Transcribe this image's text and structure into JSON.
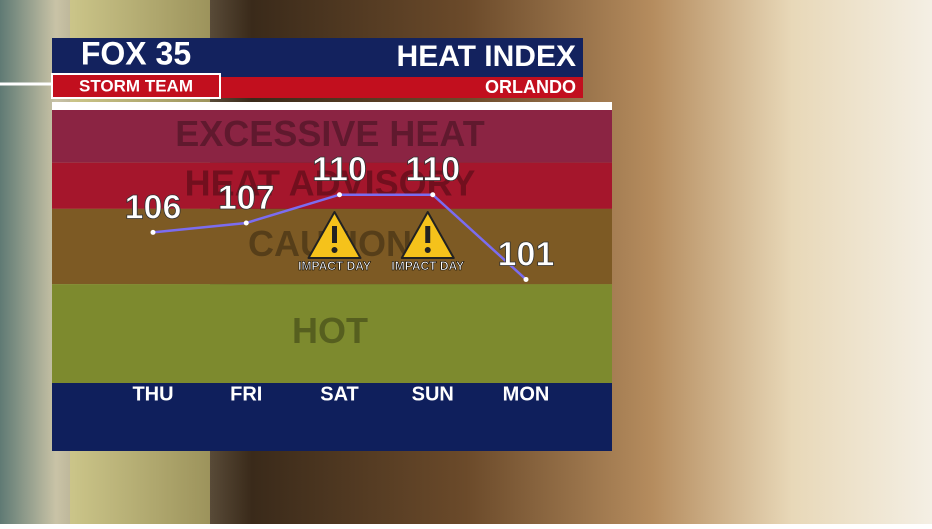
{
  "header": {
    "logo": "FOX 35",
    "team": "STORM TEAM",
    "title": "HEAT INDEX",
    "location": "ORLANDO"
  },
  "chart_data": {
    "type": "line",
    "categories": [
      "THU",
      "FRI",
      "SAT",
      "SUN",
      "MON"
    ],
    "series": [
      {
        "name": "Heat Index",
        "color": "#7b6cf0",
        "values": [
          106,
          107,
          110,
          110,
          101
        ]
      }
    ],
    "ylim": [
      90,
      119
    ],
    "bands": [
      {
        "label": "EXCESSIVE HEAT",
        "from": 113.4,
        "to": 119,
        "color": "#8b2443"
      },
      {
        "label": "HEAT ADVISORY",
        "from": 108.5,
        "to": 113.4,
        "color": "#a5162c"
      },
      {
        "label": "CAUTION",
        "from": 100.5,
        "to": 108.5,
        "color": "#7d5a24"
      },
      {
        "label": "HOT",
        "from": 90,
        "to": 100.5,
        "color": "#7d8a2e"
      }
    ],
    "annotations": [
      {
        "text": "IMPACT DAY",
        "category": "SAT"
      },
      {
        "text": "IMPACT DAY",
        "category": "SUN"
      }
    ]
  }
}
